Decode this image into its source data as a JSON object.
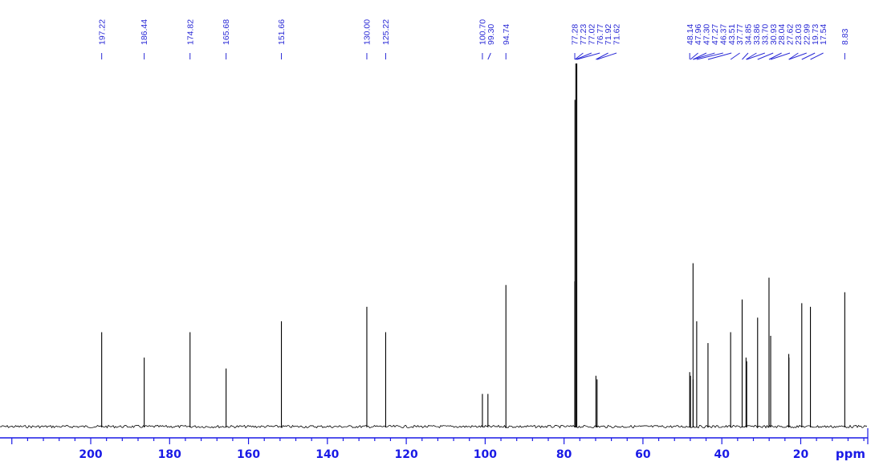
{
  "chart_data": {
    "type": "line",
    "title": "",
    "xlabel": "ppm",
    "ylabel": "",
    "xlim": [
      223,
      3
    ],
    "x_reversed": true,
    "grid": false,
    "x_ticks": [
      "200",
      "180",
      "160",
      "140",
      "120",
      "100",
      "80",
      "60",
      "40",
      "20"
    ],
    "peak_labels": [
      "197.22",
      "186.44",
      "174.82",
      "165.68",
      "151.66",
      "130.00",
      "125.22",
      "100.70",
      "99.30",
      "94.74",
      "77.28",
      "77.23",
      "77.02",
      "76.77",
      "71.92",
      "71.62",
      "48.14",
      "47.96",
      "47.30",
      "47.27",
      "46.37",
      "43.51",
      "37.77",
      "34.85",
      "33.86",
      "33.70",
      "30.93",
      "28.04",
      "27.62",
      "23.03",
      "22.99",
      "19.73",
      "17.54",
      "8.83"
    ],
    "peaks": [
      {
        "ppm": 197.22,
        "intensity": 0.26
      },
      {
        "ppm": 186.44,
        "intensity": 0.19
      },
      {
        "ppm": 174.82,
        "intensity": 0.26
      },
      {
        "ppm": 165.68,
        "intensity": 0.16
      },
      {
        "ppm": 151.66,
        "intensity": 0.29
      },
      {
        "ppm": 130.0,
        "intensity": 0.33
      },
      {
        "ppm": 125.22,
        "intensity": 0.26
      },
      {
        "ppm": 100.7,
        "intensity": 0.09
      },
      {
        "ppm": 99.3,
        "intensity": 0.09
      },
      {
        "ppm": 94.74,
        "intensity": 0.39
      },
      {
        "ppm": 77.28,
        "intensity": 0.4
      },
      {
        "ppm": 77.23,
        "intensity": 0.9
      },
      {
        "ppm": 77.02,
        "intensity": 1.0
      },
      {
        "ppm": 76.77,
        "intensity": 1.0
      },
      {
        "ppm": 71.92,
        "intensity": 0.14
      },
      {
        "ppm": 71.62,
        "intensity": 0.13
      },
      {
        "ppm": 48.14,
        "intensity": 0.15
      },
      {
        "ppm": 47.96,
        "intensity": 0.14
      },
      {
        "ppm": 47.3,
        "intensity": 0.45
      },
      {
        "ppm": 47.27,
        "intensity": 0.13
      },
      {
        "ppm": 46.37,
        "intensity": 0.29
      },
      {
        "ppm": 43.51,
        "intensity": 0.23
      },
      {
        "ppm": 37.77,
        "intensity": 0.26
      },
      {
        "ppm": 34.85,
        "intensity": 0.35
      },
      {
        "ppm": 33.86,
        "intensity": 0.19
      },
      {
        "ppm": 33.7,
        "intensity": 0.18
      },
      {
        "ppm": 30.93,
        "intensity": 0.3
      },
      {
        "ppm": 28.04,
        "intensity": 0.41
      },
      {
        "ppm": 27.62,
        "intensity": 0.25
      },
      {
        "ppm": 23.03,
        "intensity": 0.2
      },
      {
        "ppm": 22.99,
        "intensity": 0.19
      },
      {
        "ppm": 19.73,
        "intensity": 0.34
      },
      {
        "ppm": 17.54,
        "intensity": 0.33
      },
      {
        "ppm": 8.83,
        "intensity": 0.37
      }
    ]
  },
  "colors": {
    "axis": "#1a1ae6",
    "labels": "#2b2bd6",
    "trace": "#000000"
  }
}
